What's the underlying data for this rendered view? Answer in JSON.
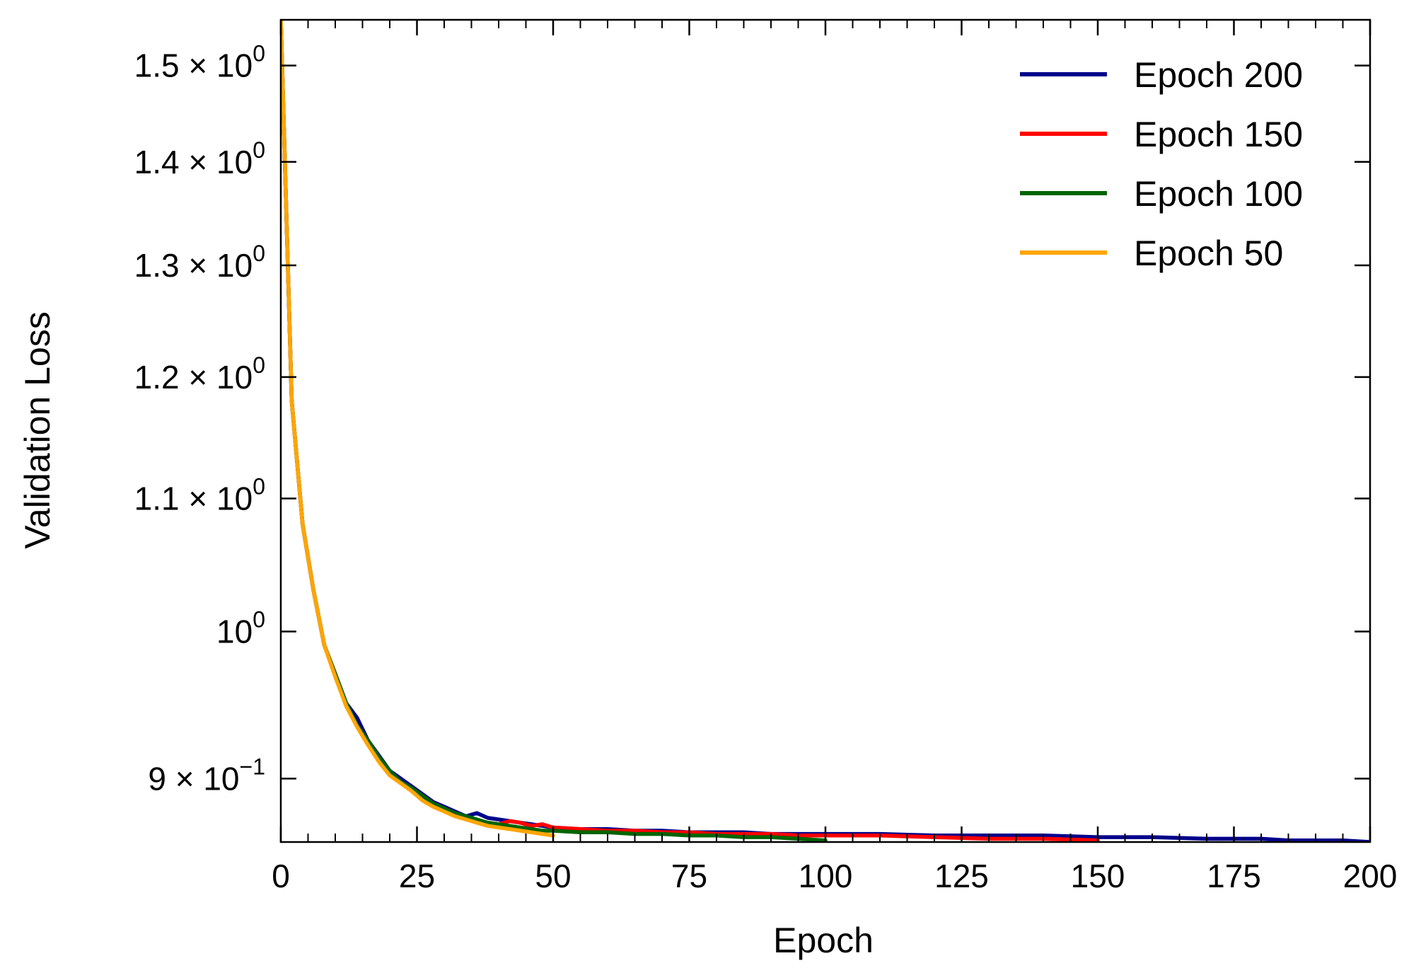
{
  "chart_data": {
    "type": "line",
    "xlabel": "Epoch",
    "ylabel": "Validation Loss",
    "xlim": [
      0,
      200
    ],
    "ylim": [
      0.86,
      1.55
    ],
    "yscale": "log",
    "x_ticks": [
      {
        "value": 0,
        "label": "0"
      },
      {
        "value": 25,
        "label": "25"
      },
      {
        "value": 50,
        "label": "50"
      },
      {
        "value": 75,
        "label": "75"
      },
      {
        "value": 100,
        "label": "100"
      },
      {
        "value": 125,
        "label": "125"
      },
      {
        "value": 150,
        "label": "150"
      },
      {
        "value": 175,
        "label": "175"
      },
      {
        "value": 200,
        "label": "200"
      }
    ],
    "y_ticks": [
      {
        "value": 0.9,
        "mant": "9",
        "exp": "−1"
      },
      {
        "value": 1.0,
        "mant": "",
        "exp": "0"
      },
      {
        "value": 1.1,
        "mant": "1.1",
        "exp": "0"
      },
      {
        "value": 1.2,
        "mant": "1.2",
        "exp": "0"
      },
      {
        "value": 1.3,
        "mant": "1.3",
        "exp": "0"
      },
      {
        "value": 1.4,
        "mant": "1.4",
        "exp": "0"
      },
      {
        "value": 1.5,
        "mant": "1.5",
        "exp": "0"
      }
    ],
    "x_minor_step": 5,
    "grid": false,
    "legend_position": "top-right",
    "series": [
      {
        "name": "Epoch 200",
        "color": "#00008b",
        "x": [
          0,
          2,
          4,
          6,
          8,
          10,
          12,
          14,
          16,
          18,
          20,
          22,
          24,
          26,
          28,
          30,
          32,
          34,
          36,
          38,
          40,
          42,
          44,
          46,
          48,
          50,
          55,
          60,
          65,
          70,
          75,
          80,
          85,
          90,
          95,
          100,
          110,
          120,
          130,
          140,
          150,
          160,
          170,
          175,
          180,
          185,
          190,
          195,
          200
        ],
        "y": [
          1.55,
          1.18,
          1.08,
          1.03,
          0.99,
          0.97,
          0.95,
          0.94,
          0.925,
          0.915,
          0.905,
          0.9,
          0.895,
          0.89,
          0.885,
          0.882,
          0.879,
          0.876,
          0.878,
          0.875,
          0.874,
          0.873,
          0.872,
          0.871,
          0.87,
          0.869,
          0.868,
          0.868,
          0.867,
          0.867,
          0.866,
          0.866,
          0.866,
          0.865,
          0.865,
          0.865,
          0.865,
          0.864,
          0.864,
          0.864,
          0.863,
          0.863,
          0.862,
          0.862,
          0.862,
          0.861,
          0.861,
          0.861,
          0.86
        ]
      },
      {
        "name": "Epoch 150",
        "color": "#ff0000",
        "x": [
          0,
          2,
          4,
          6,
          8,
          10,
          12,
          14,
          16,
          18,
          20,
          22,
          24,
          26,
          28,
          30,
          32,
          34,
          36,
          38,
          40,
          42,
          44,
          46,
          48,
          50,
          55,
          60,
          65,
          70,
          75,
          80,
          85,
          90,
          95,
          100,
          110,
          120,
          130,
          140,
          150
        ],
        "y": [
          1.55,
          1.18,
          1.08,
          1.03,
          0.99,
          0.97,
          0.948,
          0.935,
          0.925,
          0.912,
          0.903,
          0.898,
          0.893,
          0.888,
          0.883,
          0.88,
          0.877,
          0.875,
          0.873,
          0.872,
          0.871,
          0.873,
          0.872,
          0.87,
          0.871,
          0.869,
          0.868,
          0.867,
          0.867,
          0.866,
          0.866,
          0.865,
          0.865,
          0.865,
          0.864,
          0.864,
          0.864,
          0.863,
          0.862,
          0.862,
          0.861
        ]
      },
      {
        "name": "Epoch 100",
        "color": "#006400",
        "x": [
          0,
          2,
          4,
          6,
          8,
          10,
          12,
          14,
          16,
          18,
          20,
          22,
          24,
          26,
          28,
          30,
          32,
          34,
          36,
          38,
          40,
          42,
          44,
          46,
          48,
          50,
          55,
          60,
          65,
          70,
          75,
          80,
          85,
          90,
          95,
          100
        ],
        "y": [
          1.55,
          1.18,
          1.08,
          1.03,
          0.99,
          0.97,
          0.95,
          0.935,
          0.925,
          0.914,
          0.905,
          0.898,
          0.894,
          0.889,
          0.884,
          0.881,
          0.878,
          0.876,
          0.874,
          0.872,
          0.871,
          0.87,
          0.869,
          0.868,
          0.867,
          0.867,
          0.866,
          0.866,
          0.865,
          0.865,
          0.864,
          0.864,
          0.863,
          0.863,
          0.862,
          0.861
        ]
      },
      {
        "name": "Epoch 50",
        "color": "#ffa500",
        "x": [
          0,
          2,
          4,
          6,
          8,
          10,
          12,
          14,
          16,
          18,
          20,
          22,
          24,
          26,
          28,
          30,
          32,
          34,
          36,
          38,
          40,
          42,
          44,
          46,
          48,
          50
        ],
        "y": [
          1.55,
          1.18,
          1.08,
          1.03,
          0.99,
          0.968,
          0.948,
          0.934,
          0.922,
          0.911,
          0.902,
          0.897,
          0.892,
          0.886,
          0.882,
          0.879,
          0.876,
          0.874,
          0.872,
          0.87,
          0.869,
          0.868,
          0.867,
          0.866,
          0.865,
          0.864
        ]
      }
    ]
  }
}
